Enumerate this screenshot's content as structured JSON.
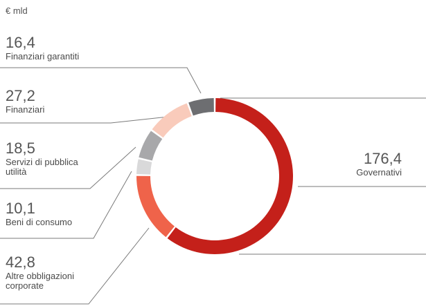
{
  "chart_data": {
    "type": "donut",
    "subtitle": "€ mld",
    "categories": [
      "Governativi",
      "Altre obbligazioni corporate",
      "Beni di consumo",
      "Servizi di pubblica utilità",
      "Finanziari",
      "Finanziari garantiti"
    ],
    "values": [
      176.4,
      42.8,
      10.1,
      18.5,
      27.2,
      16.4
    ],
    "value_labels": [
      "176,4",
      "42,8",
      "10,1",
      "18,5",
      "27,2",
      "16,4"
    ],
    "colors": [
      "#c4201a",
      "#ef634a",
      "#d9d9da",
      "#a8a8aa",
      "#f9cbbb",
      "#6d6e71"
    ]
  }
}
